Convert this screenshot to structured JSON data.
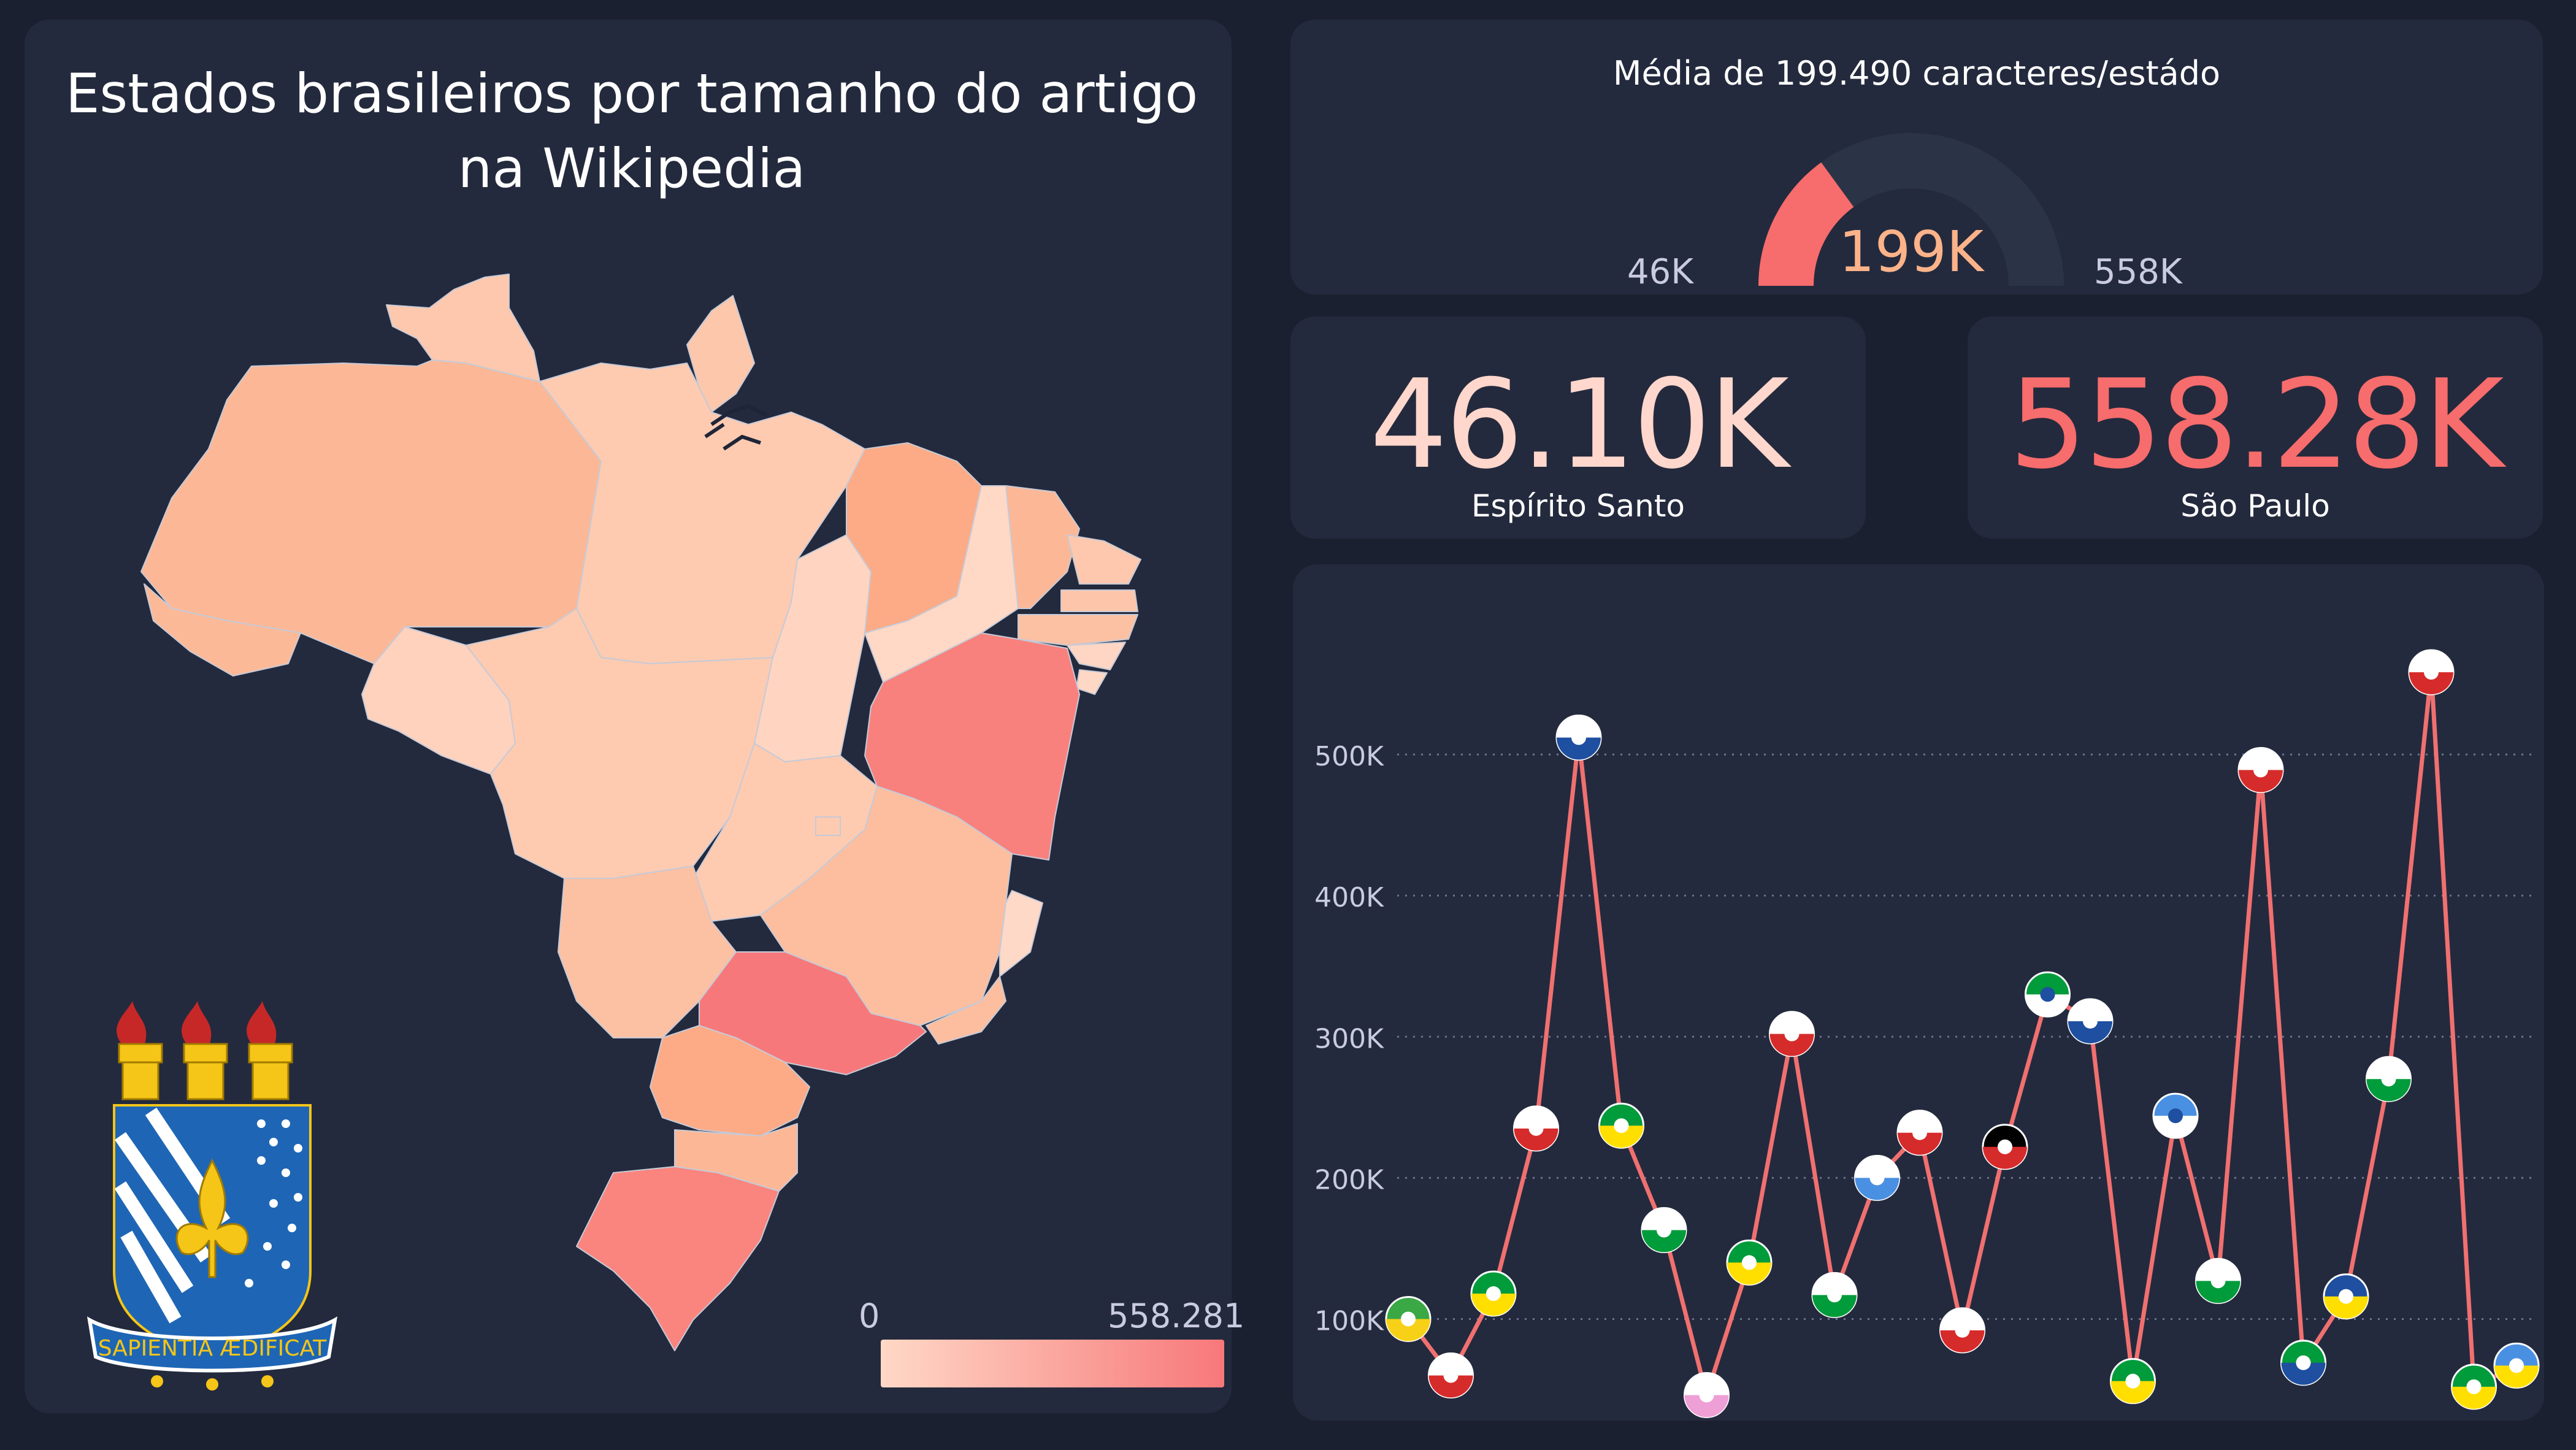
{
  "map": {
    "title": "Estados brasileiros por tamanho do artigo na Wikipedia",
    "legend": {
      "min_label": "0",
      "max_label": "558.281",
      "color_min": "#ffd8c6",
      "color_max": "#f7787a"
    },
    "logo_motto": "SAPIENTIA ÆDIFICAT"
  },
  "gauge": {
    "title": "Média de 199.490 caracteres/estádo",
    "value_label": "199K",
    "min_label": "46K",
    "max_label": "558K",
    "value": 199490,
    "min": 46100,
    "max": 558280,
    "fill_color": "#f76c6c",
    "track_color": "#2b3447"
  },
  "kpis": {
    "min": {
      "value": "46.10K",
      "state": "Espírito Santo",
      "color": "#ffd7cc"
    },
    "max": {
      "value": "558.28K",
      "state": "São Paulo",
      "color": "#f76c6c"
    }
  },
  "chart_data": {
    "type": "line",
    "ylabel": "",
    "xlabel": "",
    "yticks": [
      "100K",
      "200K",
      "300K",
      "400K",
      "500K"
    ],
    "ylim": [
      35000,
      600000
    ],
    "grid": true,
    "line_color": "#f07070",
    "points": [
      {
        "flag": "acre-flag",
        "value": 100000
      },
      {
        "flag": "alagoas-flag",
        "value": 60000
      },
      {
        "flag": "amapa-flag",
        "value": 118000
      },
      {
        "flag": "amazonas-flag",
        "value": 235000
      },
      {
        "flag": "bahia-flag",
        "value": 512000
      },
      {
        "flag": "ceara-flag",
        "value": 237000
      },
      {
        "flag": "distrito-federal-flag",
        "value": 163000
      },
      {
        "flag": "espirito-santo-flag",
        "value": 46100
      },
      {
        "flag": "goias-flag",
        "value": 140000
      },
      {
        "flag": "maranhao-flag",
        "value": 302000
      },
      {
        "flag": "mato-grosso-flag",
        "value": 117000
      },
      {
        "flag": "mato-grosso-do-sul-flag",
        "value": 200000
      },
      {
        "flag": "minas-gerais-flag",
        "value": 232000
      },
      {
        "flag": "para-flag",
        "value": 92000
      },
      {
        "flag": "paraiba-flag",
        "value": 222000
      },
      {
        "flag": "parana-flag",
        "value": 330000
      },
      {
        "flag": "pernambuco-flag",
        "value": 311000
      },
      {
        "flag": "piaui-flag",
        "value": 56000
      },
      {
        "flag": "rio-de-janeiro-flag",
        "value": 244000
      },
      {
        "flag": "rio-grande-do-norte-flag",
        "value": 127000
      },
      {
        "flag": "rio-grande-do-sul-flag",
        "value": 489000
      },
      {
        "flag": "rondonia-flag",
        "value": 69000
      },
      {
        "flag": "roraima-flag",
        "value": 116000
      },
      {
        "flag": "santa-catarina-flag",
        "value": 270000
      },
      {
        "flag": "sao-paulo-flag",
        "value": 558281
      },
      {
        "flag": "sergipe-flag",
        "value": 52000
      },
      {
        "flag": "tocantins-flag",
        "value": 67000
      }
    ]
  }
}
